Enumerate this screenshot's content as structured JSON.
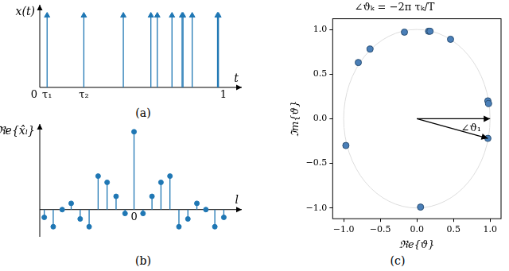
{
  "chart_data": [
    {
      "type": "stem",
      "caption": "(a)",
      "x_label": "t",
      "y_label": "x(t)",
      "x": [
        0.04,
        0.24,
        0.455,
        0.605,
        0.64,
        0.72,
        0.775,
        0.78,
        0.83,
        0.968,
        0.973
      ],
      "values": [
        1,
        1,
        1,
        1,
        1,
        1,
        1,
        1,
        1,
        1,
        1
      ],
      "xlim": [
        0,
        1.1
      ],
      "ylim": [
        0,
        1.15
      ],
      "xticks": [
        0,
        {
          "value": 0.04,
          "label": "τ₁"
        },
        {
          "value": 0.24,
          "label": "τ₂"
        },
        1
      ],
      "tick_labels": "x",
      "marker": "arrow",
      "color": "#1f77b4",
      "grid": false
    },
    {
      "type": "stem",
      "caption": "(b)",
      "x_label": "l",
      "y_label": "ℜe{x̂ₗ}",
      "x": [
        -10,
        -9,
        -8,
        -7,
        -6,
        -5,
        -4,
        -3,
        -2,
        -1,
        0,
        1,
        2,
        3,
        4,
        5,
        6,
        7,
        8,
        9,
        10
      ],
      "values": [
        -0.1,
        -0.22,
        0.0,
        0.08,
        -0.12,
        -0.22,
        0.43,
        0.35,
        0.17,
        -0.05,
        1.0,
        -0.05,
        0.17,
        0.35,
        0.43,
        -0.22,
        -0.12,
        0.08,
        0.0,
        -0.22,
        -0.1
      ],
      "xlim": [
        -10.5,
        12
      ],
      "ylim": [
        -0.35,
        1.1
      ],
      "xticks": [
        0
      ],
      "tick_labels": "x",
      "marker": "circle",
      "color": "#1f77b4",
      "grid": false
    },
    {
      "type": "scatter",
      "caption": "(c)",
      "title": "∠ϑₖ = −2π τₖ/T",
      "x_label": "ℜe{ϑ}",
      "y_label": "ℑm{ϑ}",
      "x": [
        0.97,
        0.05,
        -0.97,
        -0.8,
        -0.64,
        -0.17,
        0.16,
        0.18,
        0.46,
        0.97,
        0.98
      ],
      "values": [
        -0.22,
        -0.99,
        -0.3,
        0.63,
        0.78,
        0.97,
        0.98,
        0.98,
        0.89,
        0.2,
        0.17
      ],
      "xlim": [
        -1.15,
        1.15
      ],
      "ylim": [
        -1.12,
        1.12
      ],
      "xticks": [
        {
          "value": -1,
          "label": "−1.0"
        },
        {
          "value": -0.5,
          "label": "−0.5"
        },
        {
          "value": 0,
          "label": "0.0"
        },
        {
          "value": 0.5,
          "label": "0.5"
        },
        {
          "value": 1,
          "label": "1.0"
        }
      ],
      "yticks": [
        {
          "value": -1,
          "label": "−1.0"
        },
        {
          "value": -0.5,
          "label": "−0.5"
        },
        {
          "value": 0,
          "label": "0.0"
        },
        {
          "value": 0.5,
          "label": "0.5"
        },
        {
          "value": 1,
          "label": "1.0"
        }
      ],
      "annotations": [
        "∠ϑ₁"
      ],
      "marker": "circle",
      "color": "#4a7fb8",
      "grid": false
    }
  ]
}
